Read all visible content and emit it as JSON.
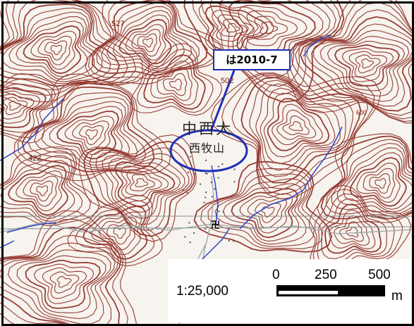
{
  "map": {
    "annotation_label": "は2010-7",
    "elevations": {
      "e527": "527",
      "e502": "502",
      "e422": "422",
      "e600": "600"
    },
    "place_name_large": "中西大",
    "place_name_small": "西牧山",
    "temple_symbol": "卍",
    "scale": {
      "ratio": "1:25,000",
      "ticks": [
        "0",
        "250",
        "500"
      ],
      "unit": "m"
    },
    "colors": {
      "contour": "#8b2a20",
      "river": "#2b47c8",
      "annotation": "#1f2fb8"
    }
  }
}
